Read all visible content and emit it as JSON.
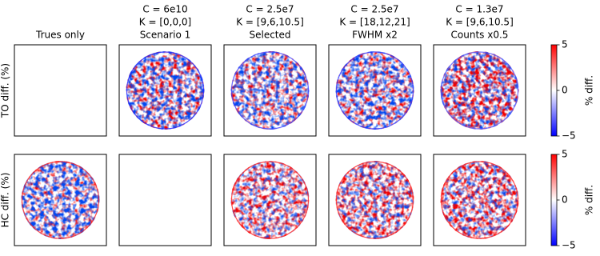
{
  "columns": [
    [
      "Trues only"
    ],
    [
      "C = 6e10",
      "K = [0,0,0]",
      "Scenario 1"
    ],
    [
      "C = 2.5e7",
      "K = [9,6,10.5]",
      "Selected"
    ],
    [
      "C = 2.5e7",
      "K = [18,12,21]",
      "FWHM x2"
    ],
    [
      "C = 1.3e7",
      "K = [9,6,10.5]",
      "Counts x0.5"
    ]
  ],
  "rows": [
    "TO diff. (%)",
    "HC diff. (%)"
  ],
  "colorbars": [
    {
      "label": "% diff.",
      "ylim": [
        -5,
        5
      ],
      "yticks": [
        {
          "value": -5,
          "label": "−5"
        },
        0,
        5
      ],
      "colors": [
        "#0000ff",
        "#ffffff",
        "#ff0000"
      ]
    },
    {
      "label": "% diff.",
      "ylim": [
        -5,
        5
      ],
      "yticks": [
        {
          "value": -5,
          "label": "−5"
        },
        0,
        5
      ],
      "colors": [
        "#0000ff",
        "#ffffff",
        "#ff0000"
      ]
    }
  ]
}
